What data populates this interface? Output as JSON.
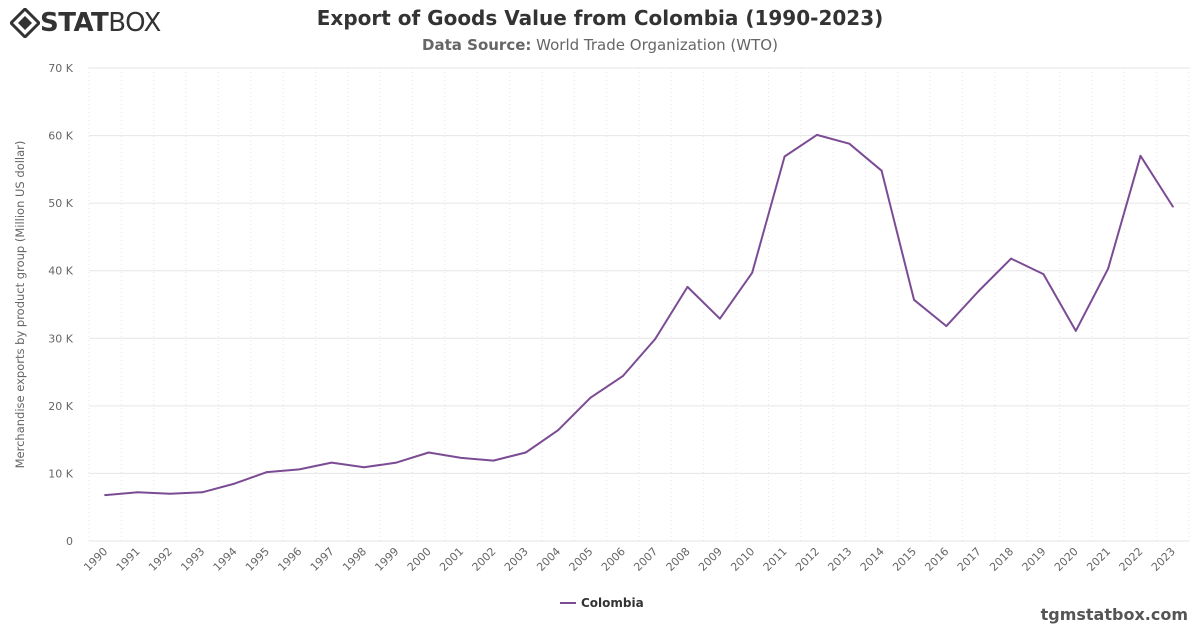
{
  "header": {
    "logo_bold": "STAT",
    "logo_light": "BOX",
    "title": "Export of Goods Value from Colombia (1990-2023)",
    "subtitle_label": "Data Source:",
    "subtitle_value": "World Trade Organization (WTO)"
  },
  "footer": {
    "credit": "tgmstatbox.com"
  },
  "colors": {
    "series": "#7b4b94",
    "grid": "#e6e6e6",
    "axis_text": "#666666"
  },
  "chart_data": {
    "type": "line",
    "title": "Export of Goods Value from Colombia (1990-2023)",
    "subtitle": "Data Source: World Trade Organization (WTO)",
    "xlabel": "",
    "ylabel": "Merchandise exports by product group (Million US dollar)",
    "ylim": [
      0,
      70000
    ],
    "yticks": [
      0,
      10000,
      20000,
      30000,
      40000,
      50000,
      60000,
      70000
    ],
    "ytick_labels": [
      "0",
      "10 K",
      "20 K",
      "30 K",
      "40 K",
      "50 K",
      "60 K",
      "70 K"
    ],
    "grid": true,
    "legend": "bottom-center",
    "x": [
      "1990",
      "1991",
      "1992",
      "1993",
      "1994",
      "1995",
      "1996",
      "1997",
      "1998",
      "1999",
      "2000",
      "2001",
      "2002",
      "2003",
      "2004",
      "2005",
      "2006",
      "2007",
      "2008",
      "2009",
      "2010",
      "2011",
      "2012",
      "2013",
      "2014",
      "2015",
      "2016",
      "2017",
      "2018",
      "2019",
      "2020",
      "2021",
      "2022",
      "2023"
    ],
    "series": [
      {
        "name": "Colombia",
        "values": [
          6800,
          7200,
          7000,
          7200,
          8500,
          10200,
          10600,
          11600,
          10900,
          11600,
          13100,
          12300,
          11900,
          13100,
          16400,
          21200,
          24400,
          29900,
          37600,
          32900,
          39700,
          56900,
          60100,
          58800,
          54800,
          35700,
          31800,
          37000,
          41800,
          39500,
          31100,
          40300,
          57000,
          49500
        ]
      }
    ]
  }
}
